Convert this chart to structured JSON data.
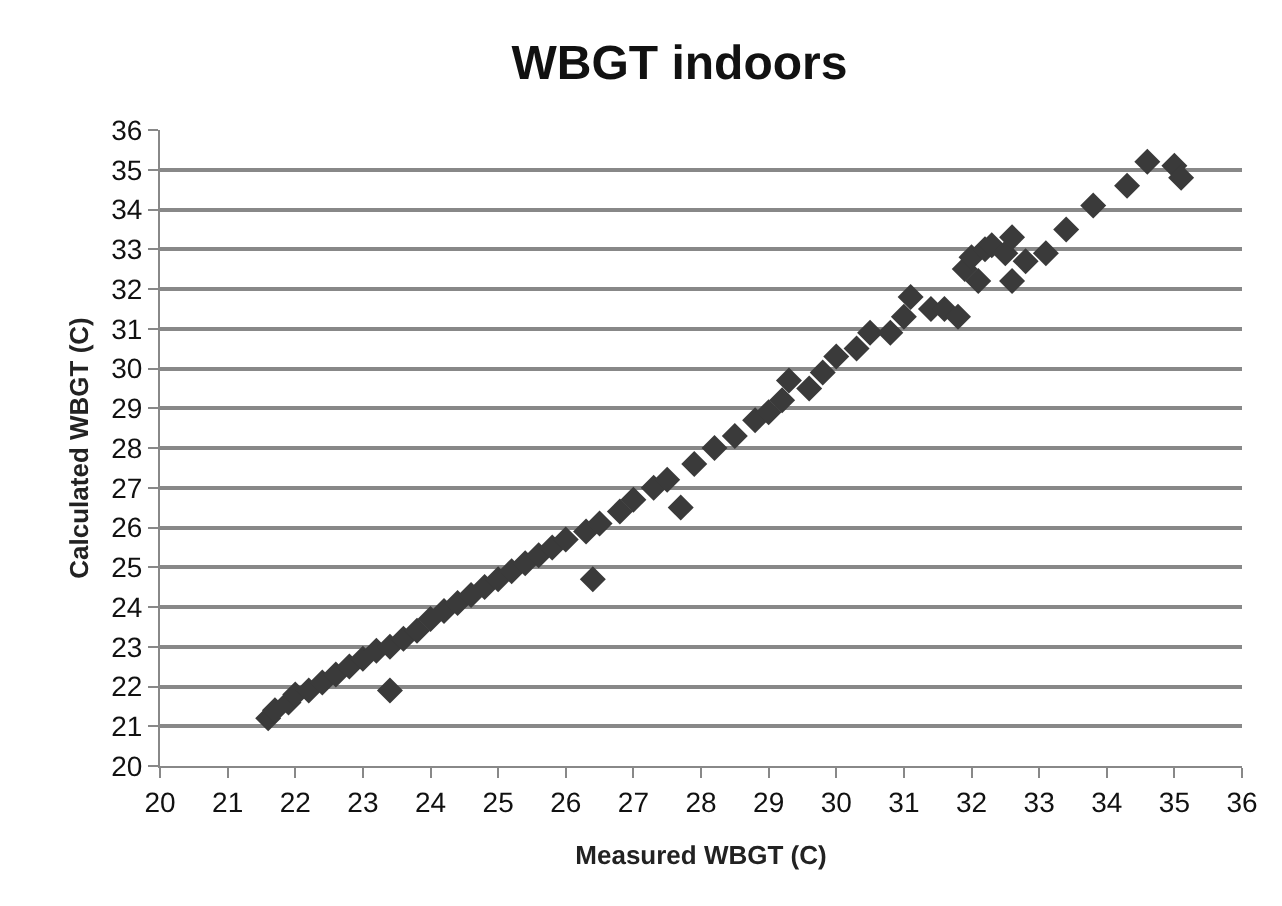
{
  "chart_data": {
    "type": "scatter",
    "title": "WBGT indoors",
    "xlabel": "Measured WBGT (C)",
    "ylabel": "Calculated WBGT (C)",
    "x": [
      21.6,
      21.7,
      21.9,
      22.0,
      22.2,
      22.4,
      22.6,
      22.8,
      23.0,
      23.2,
      23.4,
      23.6,
      23.8,
      24.0,
      24.2,
      24.4,
      24.6,
      24.8,
      25.0,
      25.2,
      25.4,
      25.6,
      25.8,
      26.0,
      26.3,
      26.5,
      26.8,
      27.0,
      27.3,
      27.5,
      27.9,
      28.2,
      28.5,
      28.8,
      29.0,
      29.2,
      29.3,
      29.6,
      29.8,
      30.0,
      30.3,
      30.5,
      30.8,
      31.0,
      31.1,
      31.4,
      31.6,
      31.8,
      31.9,
      32.0,
      32.1,
      32.2,
      32.3,
      32.5,
      32.6,
      32.6,
      32.8,
      33.1,
      33.4,
      33.8,
      34.3,
      34.6,
      35.0,
      35.1,
      23.4,
      26.4,
      27.7
    ],
    "series": [
      {
        "color": "#3a3a3a",
        "values": [
          21.2,
          21.4,
          21.6,
          21.8,
          21.9,
          22.1,
          22.3,
          22.5,
          22.7,
          22.9,
          23.0,
          23.2,
          23.4,
          23.7,
          23.9,
          24.1,
          24.3,
          24.5,
          24.7,
          24.9,
          25.1,
          25.3,
          25.5,
          25.7,
          25.9,
          26.1,
          26.4,
          26.7,
          27.0,
          27.2,
          27.6,
          28.0,
          28.3,
          28.7,
          28.9,
          29.2,
          29.7,
          29.5,
          29.9,
          30.3,
          30.5,
          30.9,
          30.9,
          31.3,
          31.8,
          31.5,
          31.5,
          31.3,
          32.5,
          32.8,
          32.2,
          33.0,
          33.1,
          32.9,
          33.3,
          32.2,
          32.7,
          32.9,
          33.5,
          34.1,
          34.6,
          35.2,
          35.1,
          34.8,
          21.9,
          24.7,
          26.5
        ]
      }
    ],
    "xlim": [
      20,
      36
    ],
    "xticks": [
      20,
      21,
      22,
      23,
      24,
      25,
      26,
      27,
      28,
      29,
      30,
      31,
      32,
      33,
      34,
      35,
      36
    ],
    "ylim": [
      20,
      36
    ],
    "yticks": [
      20,
      21,
      22,
      23,
      24,
      25,
      26,
      27,
      28,
      29,
      30,
      31,
      32,
      33,
      34,
      35,
      36
    ],
    "grid": "y",
    "marker": "diamond"
  }
}
